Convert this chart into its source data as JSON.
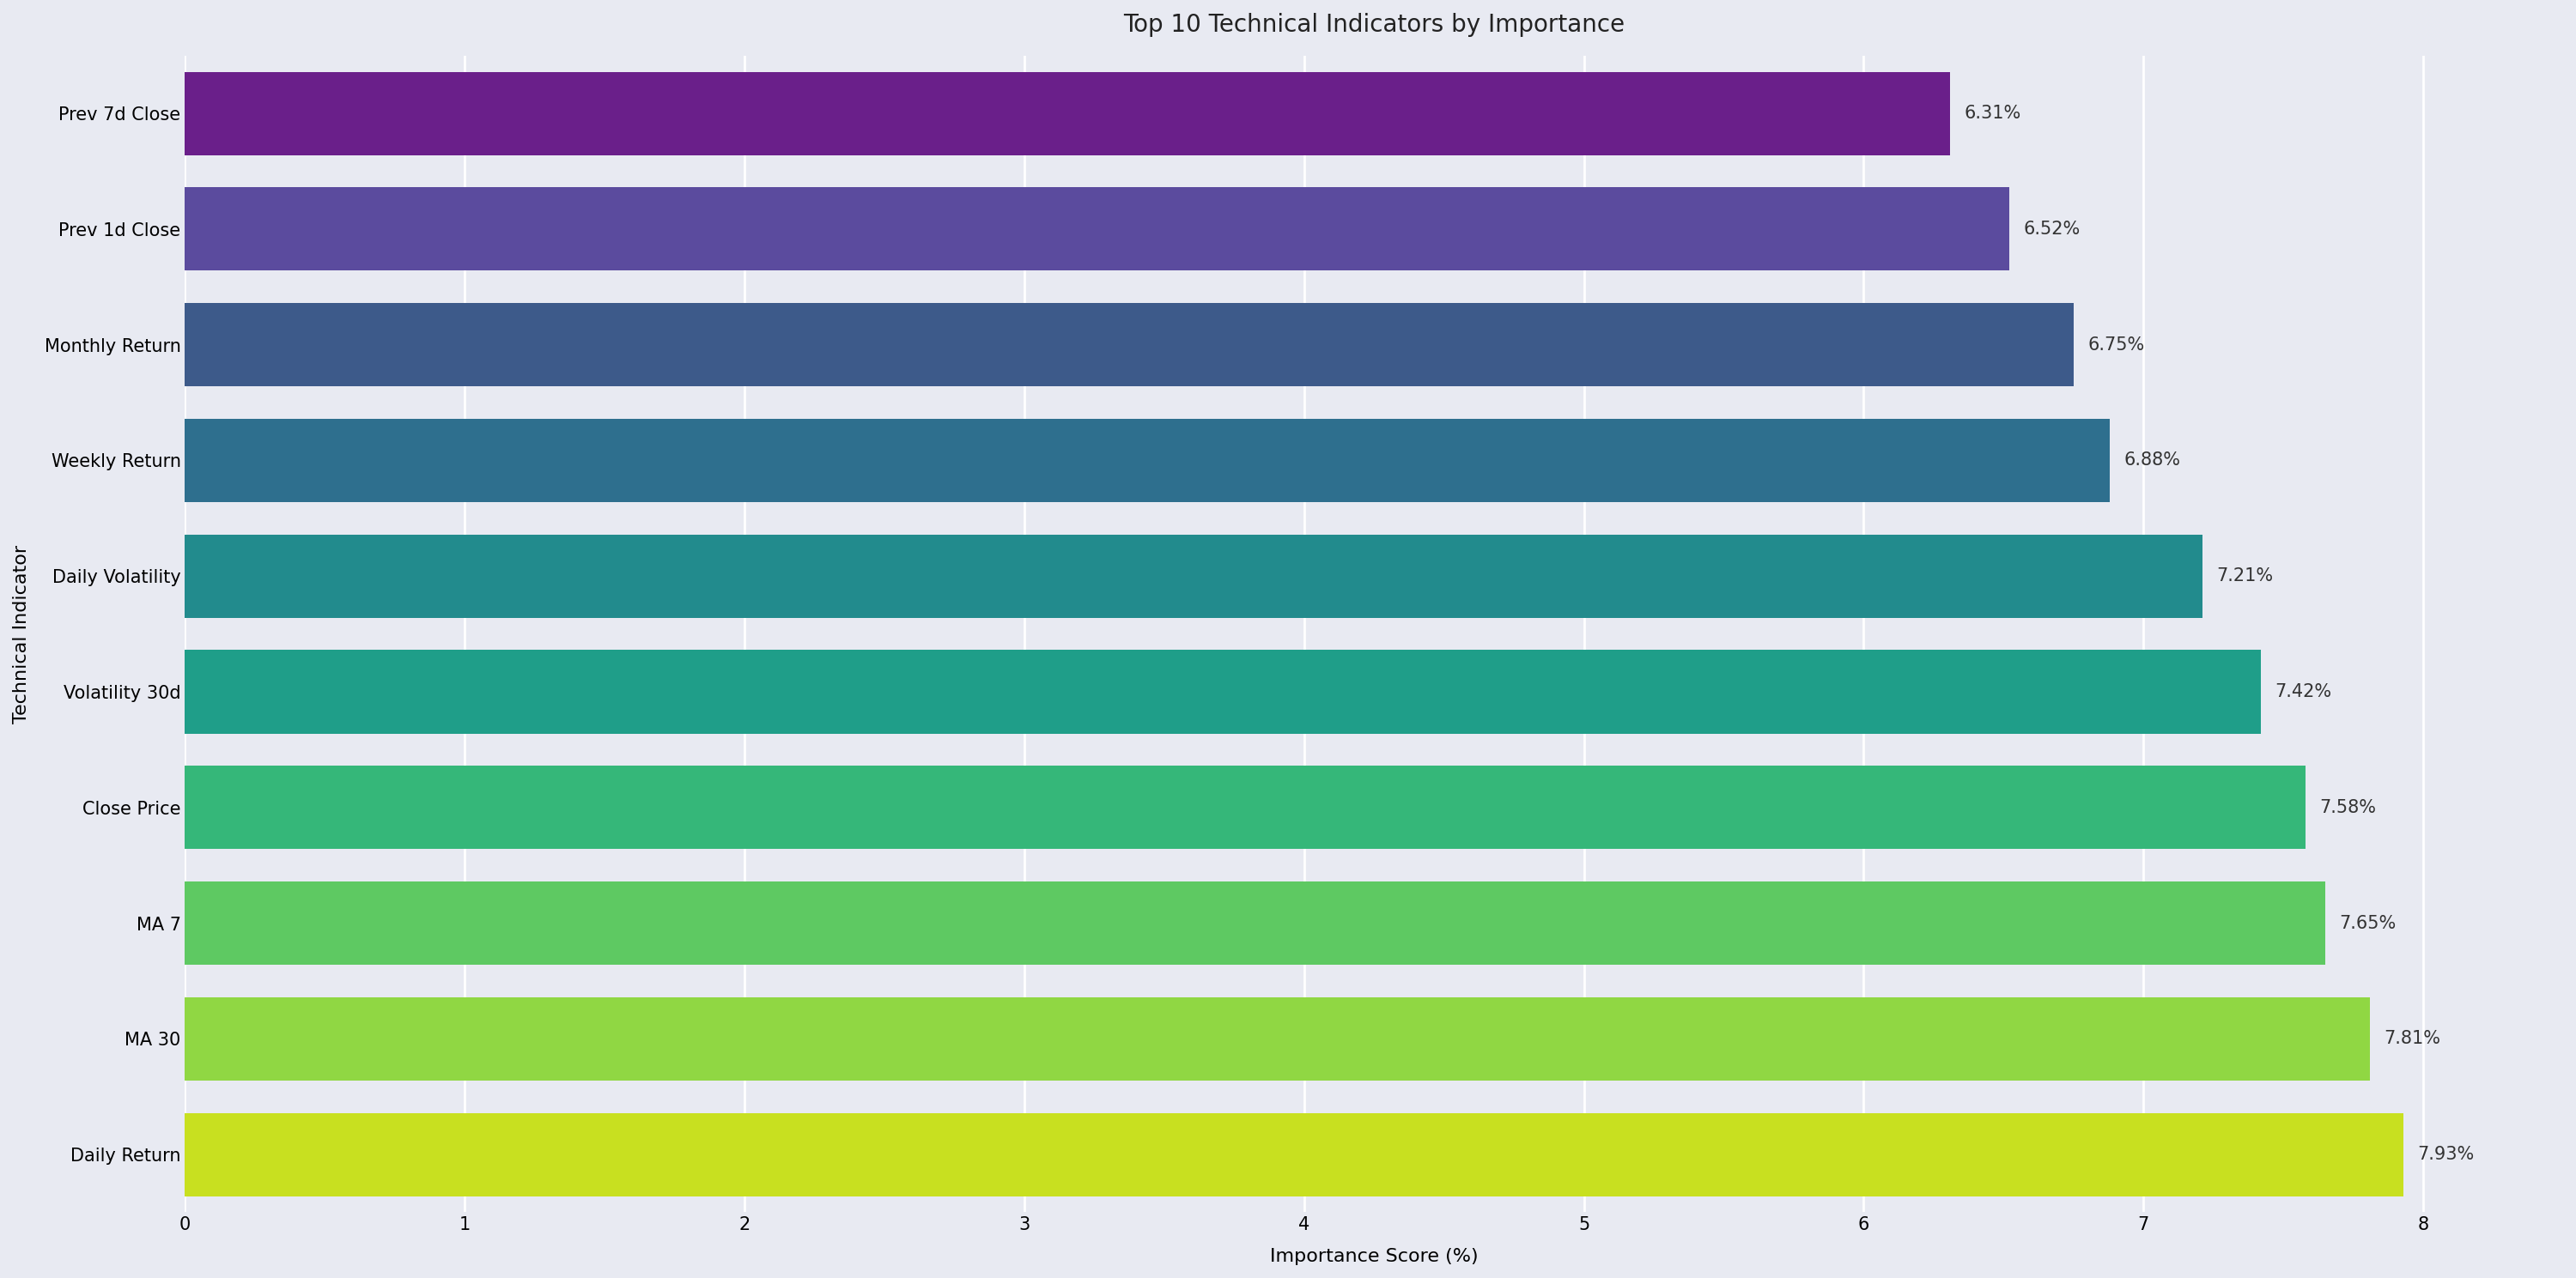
{
  "title": "Top 10 Technical Indicators by Importance",
  "xlabel": "Importance Score (%)",
  "ylabel": "Technical Indicator",
  "categories": [
    "Prev 7d Close",
    "Prev 1d Close",
    "Monthly Return",
    "Weekly Return",
    "Daily Volatility",
    "Volatility 30d",
    "Close Price",
    "MA 7",
    "MA 30",
    "Daily Return"
  ],
  "values": [
    6.31,
    6.52,
    6.75,
    6.88,
    7.21,
    7.42,
    7.58,
    7.65,
    7.81,
    7.93
  ],
  "bar_colors": [
    "#6a1f8a",
    "#5b4b9e",
    "#3d5a8a",
    "#2e6f8e",
    "#228b8d",
    "#1f9e89",
    "#35b779",
    "#5ec962",
    "#90d743",
    "#c8e020"
  ],
  "xlim": [
    0,
    8.5
  ],
  "xticks": [
    0,
    1,
    2,
    3,
    4,
    5,
    6,
    7,
    8
  ],
  "background_color": "#e8eaf2",
  "plot_background": "#e8eaf2",
  "grid_color": "#ffffff",
  "title_fontsize": 20,
  "label_fontsize": 16,
  "tick_fontsize": 15,
  "annotation_fontsize": 15,
  "bar_height": 0.72
}
